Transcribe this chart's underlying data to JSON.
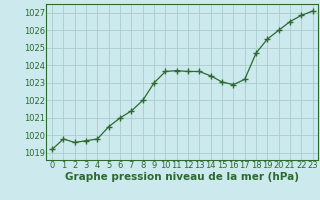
{
  "x": [
    0,
    1,
    2,
    3,
    4,
    5,
    6,
    7,
    8,
    9,
    10,
    11,
    12,
    13,
    14,
    15,
    16,
    17,
    18,
    19,
    20,
    21,
    22,
    23
  ],
  "y": [
    1019.2,
    1019.8,
    1019.6,
    1019.7,
    1019.8,
    1020.5,
    1021.0,
    1021.4,
    1022.0,
    1023.0,
    1023.65,
    1023.7,
    1023.65,
    1023.65,
    1023.4,
    1023.05,
    1022.9,
    1023.2,
    1024.7,
    1025.5,
    1026.0,
    1026.5,
    1026.85,
    1027.1
  ],
  "line_color": "#2d6a2d",
  "marker": "+",
  "marker_size": 4.5,
  "linewidth": 0.9,
  "bg_color": "#cce9ee",
  "grid_color": "#aacccc",
  "xlabel": "Graphe pression niveau de la mer (hPa)",
  "xlabel_fontsize": 7.5,
  "xlabel_color": "#2d6a2d",
  "ylabel_ticks": [
    1019,
    1020,
    1021,
    1022,
    1023,
    1024,
    1025,
    1026,
    1027
  ],
  "ylim": [
    1018.6,
    1027.5
  ],
  "xlim": [
    -0.5,
    23.5
  ],
  "tick_fontsize": 6.0,
  "tick_color": "#2d6a2d",
  "spine_color": "#2d6a2d"
}
